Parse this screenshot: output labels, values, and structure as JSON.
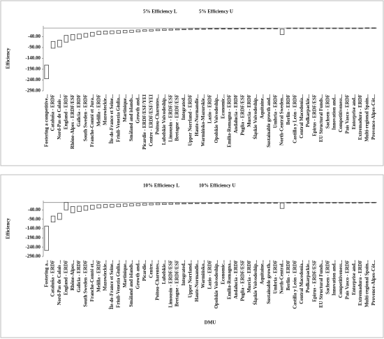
{
  "chart_data": [
    {
      "type": "range",
      "categories": [
        "Fostering a competitive...",
        "Cataluña - ERDF",
        "Nord-Pas de Calais ...",
        "England - ERDF",
        "Rhône-Alpes - ERDF/ESF",
        "Galicia - ERDF",
        "South Sweden - ERDF",
        "Franche-Comté et Jura...",
        "Melilla - ERDF",
        "Mazowieckie...",
        "Île-de-France et Seine...",
        "Friuli-Venezia Giulia...",
        "Martinique...",
        "Småland and islands...",
        "Growth and...",
        "Picardie - ERDF/ESF/YEI",
        "Centre - ERDF/ESF/YEI",
        "Poitou-Charentes...",
        "Lubelskie Voivodeship...",
        "Limousin - ERDF/ESF",
        "Bretagne - ERDF/ESF",
        "Integrated...",
        "Upper Norrland - ERDF",
        "Haute-Normandie...",
        "Warmińsko-Mazurskie...",
        "Lazio - ERDF",
        "Opolskie Voivodeship...",
        "Economic...",
        "Emilia-Romagna - ERDF",
        "Andalucía - ERDF",
        "Puglia - ERDF/ESF",
        "Murcia - ERDF",
        "Śląskie Voivodeship...",
        "Aquitaine...",
        "Sustainable growth and...",
        "Umbria - ERDF",
        "North-Central Sweden...",
        "Berlin - ERDF",
        "Castilla y León - ERDF",
        "Central Macedonia...",
        "Podkarpackie...",
        "Epirus - ERDF/ESF",
        "EU Structural Funds...",
        "Sachsen - ERDF",
        "Innovation and...",
        "Competitiveness...",
        "País Vasco - ERDF",
        "Enterprise and...",
        "Extremadura - ERDF",
        "Multi-regional Spain...",
        "Provence-Alpes-Côt..."
      ],
      "series": [
        {
          "name": "5% Efficiency L",
          "color": "#404040",
          "values": [
            -234,
            -93,
            -87,
            -65,
            -55,
            -50,
            -42,
            -38,
            -30,
            -28,
            -26,
            -24,
            -22,
            -20,
            -18,
            -15,
            -14,
            -12,
            -11,
            -10,
            -9,
            -8,
            -7,
            -6,
            -6,
            -5,
            -5,
            -4,
            -4,
            -4,
            -3,
            -3,
            -3,
            -3,
            -2,
            -2,
            -30,
            -2,
            -2,
            -2,
            -1,
            -1,
            -1,
            -1,
            -1,
            -1,
            -1,
            -1,
            -1,
            0,
            0
          ]
        },
        {
          "name": "5% Efficiency U",
          "color": "#404040",
          "values": [
            -171,
            -62,
            -56,
            -34,
            -30,
            -28,
            -25,
            -20,
            -15,
            -14,
            -13,
            -12,
            -11,
            -10,
            -9,
            -8,
            -7,
            -6,
            -5,
            -5,
            -4,
            -4,
            -3,
            -3,
            -3,
            -2,
            -2,
            -2,
            -2,
            -2,
            -1,
            -1,
            -1,
            -1,
            -1,
            -1,
            -5,
            0,
            0,
            0,
            0,
            0,
            0,
            0,
            0,
            0,
            0,
            0,
            0,
            1,
            1
          ]
        }
      ],
      "y_label": "Efficiency",
      "ylim": [
        -290,
        10
      ],
      "yticks": [
        {
          "value": -290,
          "label": "-290.00"
        },
        {
          "value": -240,
          "label": "-240.00"
        },
        {
          "value": -190,
          "label": "-190.00"
        },
        {
          "value": -140,
          "label": "-140.00"
        },
        {
          "value": -90,
          "label": "-90.00"
        },
        {
          "value": -40,
          "label": "-40.00"
        }
      ],
      "grid": false
    },
    {
      "type": "range",
      "categories": [
        "Fostering a...",
        "Cataluña - ERDF",
        "Nord-Pas de Calais ...",
        "England - ERDF",
        "Rhône-Alpes...",
        "Galicia - ERDF",
        "South Sweden - ERDF",
        "Franche-Comté et...",
        "Melilla - ERDF",
        "Mazowieckie...",
        "Île-de-France et Seine...",
        "Friuli-Venezia Giulia...",
        "Martinique...",
        "Småland and islands...",
        "Growth and...",
        "Picardie...",
        "Centre...",
        "Poitou-Charentes...",
        "Lubelskie...",
        "Limousin - ERDF/ESF",
        "Bretagne - ERDF/ESF",
        "Integrated...",
        "Upper Norrland...",
        "Haute-Normandie...",
        "Warmińsko...",
        "Lazio - ERDF",
        "Opolskie Voivodeship...",
        "Economic...",
        "Emilia-Romagna...",
        "Andalucía - ERDF",
        "Puglia - ERDF/ESF",
        "Murcia - ERDF",
        "Śląskie Voivodeship...",
        "Aquitaine...",
        "Sustainable growth...",
        "Umbria - ERDF",
        "North-Central...",
        "Berlin - ERDF",
        "Castilla y León - ERDF",
        "Central Macedonia...",
        "Podkarpackie...",
        "Epirus - ERDF/ESF",
        "EU Structural Funds...",
        "Sachsen - ERDF",
        "Innovation and...",
        "Competitiveness...",
        "País Vasco - ERDF",
        "Enterprise and...",
        "Extremadura - ERDF",
        "Multi-regional Spain...",
        "Provence-Alpes-Côt..."
      ],
      "series": [
        {
          "name": "10% Efficiency L",
          "color": "#404040",
          "values": [
            -257,
            -105,
            -91,
            -40,
            -55,
            -48,
            -42,
            -36,
            -30,
            -27,
            -25,
            -23,
            -21,
            -19,
            -17,
            -15,
            -13,
            -12,
            -11,
            -10,
            -9,
            -8,
            -7,
            -6,
            -6,
            -5,
            -5,
            -4,
            -4,
            -4,
            -3,
            -3,
            -3,
            -3,
            -2,
            -2,
            -32,
            -2,
            -2,
            -2,
            -1,
            -1,
            -1,
            -1,
            -1,
            -1,
            -1,
            -1,
            -1,
            0,
            0
          ]
        },
        {
          "name": "10% Efficiency U",
          "color": "#404040",
          "values": [
            -127,
            -73,
            -58,
            0,
            -22,
            -20,
            -18,
            -15,
            -12,
            -11,
            -10,
            -9,
            -8,
            -7,
            -6,
            -5,
            -5,
            -4,
            -4,
            -3,
            -3,
            -3,
            -2,
            -2,
            -2,
            -2,
            -2,
            -1,
            -1,
            -1,
            -1,
            -1,
            -1,
            -1,
            -1,
            -1,
            -3,
            0,
            0,
            0,
            0,
            0,
            0,
            0,
            0,
            0,
            0,
            0,
            0,
            1,
            1
          ]
        }
      ],
      "x_label": "DMU",
      "y_label": "Efficiency",
      "ylim": [
        -290,
        10
      ],
      "yticks": [
        {
          "value": -290,
          "label": "-290.00"
        },
        {
          "value": -240,
          "label": "-240.00"
        },
        {
          "value": -190,
          "label": "-190.00"
        },
        {
          "value": -140,
          "label": "-140.00"
        },
        {
          "value": -90,
          "label": "-90.00"
        },
        {
          "value": -40,
          "label": "-40.00"
        }
      ],
      "grid": false
    }
  ]
}
